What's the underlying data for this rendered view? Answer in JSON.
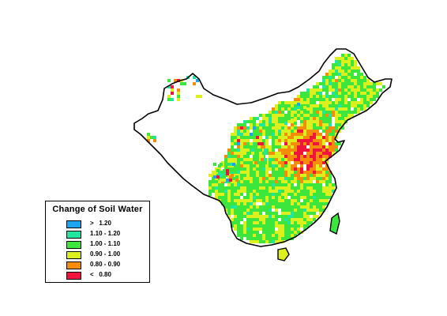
{
  "legend": {
    "title": "Change of Soil Water",
    "entries": [
      {
        "label": ">   1.20",
        "color": "#1ca6f0"
      },
      {
        "label": "1.10 - 1.20",
        "color": "#20e6a0"
      },
      {
        "label": "1.00 - 1.10",
        "color": "#3ce63c"
      },
      {
        "label": "0.90 - 1.00",
        "color": "#dcf01e"
      },
      {
        "label": "0.80 - 0.90",
        "color": "#f58c0a"
      },
      {
        "label": "<   0.80",
        "color": "#f0143c"
      }
    ]
  },
  "colors": {
    "outline": "#000000",
    "background": "#ffffff"
  }
}
